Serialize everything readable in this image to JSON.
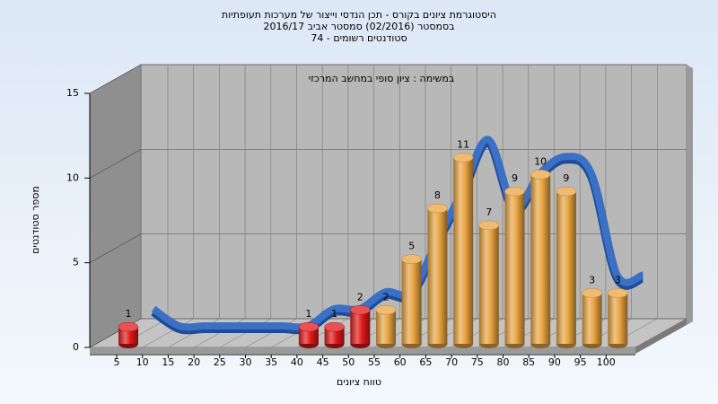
{
  "chart_data": {
    "type": "bar",
    "title_lines": [
      "היסטוגרמת ציונים בקורס - תכן הנדסי וייצור של מערכות תעופתיות",
      "בסמסטר  (02/2016)  סמסטר אביב 2016/17",
      "סטודנטים רשומים - 74"
    ],
    "annotation": "במשימה : ציון סופי במחשב המרכזי",
    "xlabel": "טווח ציונים",
    "ylabel": "מספר סטודנטים",
    "categories": [
      5,
      10,
      15,
      20,
      25,
      30,
      35,
      40,
      45,
      50,
      55,
      60,
      65,
      70,
      75,
      80,
      85,
      90,
      95,
      100
    ],
    "values": [
      1,
      0,
      0,
      0,
      0,
      0,
      0,
      1,
      1,
      2,
      2,
      5,
      8,
      11,
      7,
      9,
      10,
      9,
      3,
      3
    ],
    "colors": [
      "#e01818",
      "#e01818",
      "#e01818",
      "#e01818",
      "#e01818",
      "#e01818",
      "#e01818",
      "#e01818",
      "#e01818",
      "#e01818",
      "#e9a441",
      "#e9a441",
      "#e9a441",
      "#e9a441",
      "#e9a441",
      "#e9a441",
      "#e9a441",
      "#e9a441",
      "#e9a441",
      "#e9a441"
    ],
    "trend_color": "#3a70c6",
    "ylim": [
      0,
      15
    ],
    "yticks": [
      0,
      5,
      10,
      15
    ],
    "grid": true
  }
}
